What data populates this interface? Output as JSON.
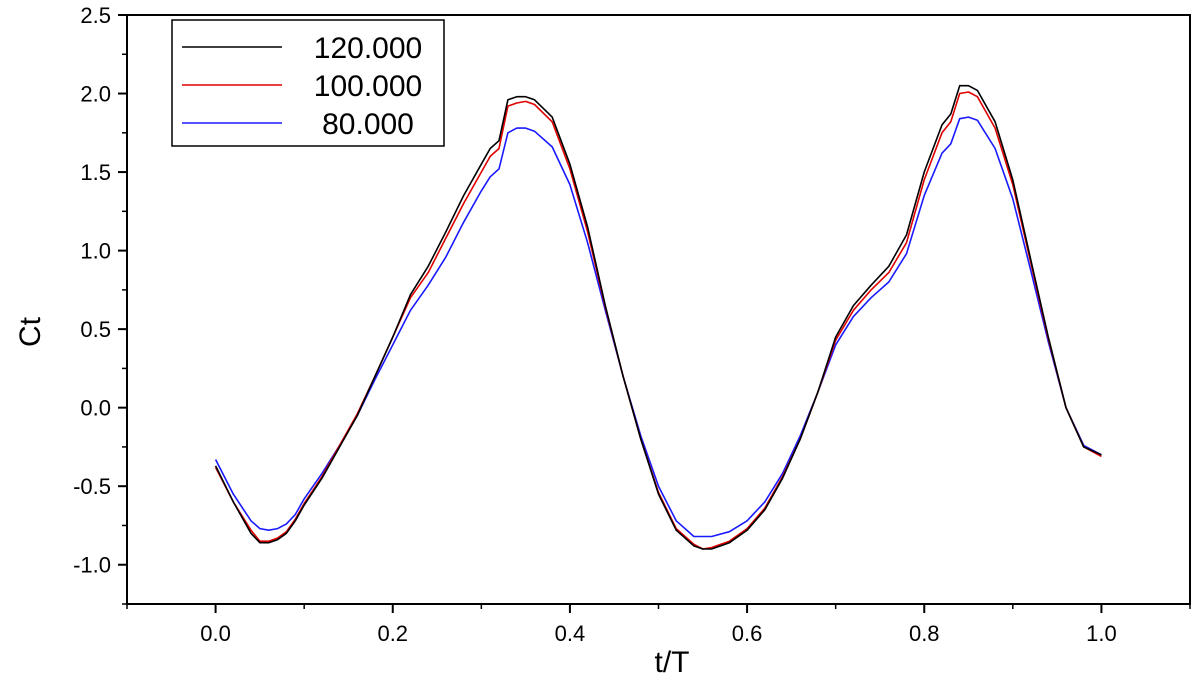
{
  "chart_data": {
    "type": "line",
    "xlabel": "t/T",
    "ylabel": "Ct",
    "xlim": [
      -0.1,
      1.1
    ],
    "ylim": [
      -1.25,
      2.5
    ],
    "xticks": [
      "0.0",
      "0.2",
      "0.4",
      "0.6",
      "0.8",
      "1.0"
    ],
    "yticks": [
      "-1.0",
      "-0.5",
      "0.0",
      "0.5",
      "1.0",
      "1.5",
      "2.0",
      "2.5"
    ],
    "grid": false,
    "legend_position": "top-left",
    "series": [
      {
        "name": "120.000",
        "color": "#000000",
        "x": [
          0.0,
          0.02,
          0.04,
          0.05,
          0.06,
          0.07,
          0.08,
          0.09,
          0.1,
          0.12,
          0.14,
          0.16,
          0.18,
          0.2,
          0.22,
          0.24,
          0.26,
          0.28,
          0.3,
          0.31,
          0.32,
          0.33,
          0.34,
          0.35,
          0.36,
          0.38,
          0.4,
          0.42,
          0.44,
          0.46,
          0.48,
          0.5,
          0.52,
          0.54,
          0.55,
          0.56,
          0.58,
          0.6,
          0.62,
          0.64,
          0.66,
          0.68,
          0.7,
          0.72,
          0.74,
          0.76,
          0.78,
          0.8,
          0.82,
          0.83,
          0.84,
          0.85,
          0.86,
          0.88,
          0.9,
          0.92,
          0.94,
          0.96,
          0.98,
          1.0
        ],
        "y": [
          -0.37,
          -0.6,
          -0.8,
          -0.86,
          -0.86,
          -0.84,
          -0.8,
          -0.72,
          -0.62,
          -0.45,
          -0.25,
          -0.05,
          0.2,
          0.45,
          0.72,
          0.9,
          1.12,
          1.35,
          1.55,
          1.65,
          1.7,
          1.96,
          1.98,
          1.98,
          1.96,
          1.85,
          1.55,
          1.15,
          0.65,
          0.2,
          -0.2,
          -0.55,
          -0.78,
          -0.88,
          -0.9,
          -0.9,
          -0.86,
          -0.78,
          -0.65,
          -0.45,
          -0.2,
          0.1,
          0.45,
          0.65,
          0.78,
          0.9,
          1.1,
          1.5,
          1.8,
          1.87,
          2.05,
          2.05,
          2.02,
          1.82,
          1.45,
          0.95,
          0.45,
          0.0,
          -0.25,
          -0.3
        ]
      },
      {
        "name": "100.000",
        "color": "#e00000",
        "x": [
          0.0,
          0.02,
          0.04,
          0.05,
          0.06,
          0.07,
          0.08,
          0.09,
          0.1,
          0.12,
          0.14,
          0.16,
          0.18,
          0.2,
          0.22,
          0.24,
          0.26,
          0.28,
          0.3,
          0.31,
          0.32,
          0.33,
          0.34,
          0.35,
          0.36,
          0.38,
          0.4,
          0.42,
          0.44,
          0.46,
          0.48,
          0.5,
          0.52,
          0.54,
          0.55,
          0.56,
          0.58,
          0.6,
          0.62,
          0.64,
          0.66,
          0.68,
          0.7,
          0.72,
          0.74,
          0.76,
          0.78,
          0.8,
          0.82,
          0.83,
          0.84,
          0.85,
          0.86,
          0.88,
          0.9,
          0.92,
          0.94,
          0.96,
          0.98,
          1.0
        ],
        "y": [
          -0.38,
          -0.6,
          -0.78,
          -0.85,
          -0.85,
          -0.83,
          -0.79,
          -0.71,
          -0.61,
          -0.44,
          -0.24,
          -0.04,
          0.2,
          0.45,
          0.7,
          0.86,
          1.08,
          1.3,
          1.5,
          1.6,
          1.65,
          1.92,
          1.94,
          1.95,
          1.93,
          1.82,
          1.52,
          1.12,
          0.64,
          0.2,
          -0.2,
          -0.54,
          -0.77,
          -0.87,
          -0.9,
          -0.89,
          -0.85,
          -0.77,
          -0.64,
          -0.44,
          -0.2,
          0.1,
          0.43,
          0.62,
          0.75,
          0.86,
          1.05,
          1.45,
          1.75,
          1.82,
          2.0,
          2.01,
          1.98,
          1.78,
          1.42,
          0.93,
          0.44,
          0.0,
          -0.25,
          -0.31
        ]
      },
      {
        "name": "80.000",
        "color": "#1a1aff",
        "x": [
          0.0,
          0.02,
          0.04,
          0.05,
          0.06,
          0.07,
          0.08,
          0.09,
          0.1,
          0.12,
          0.14,
          0.16,
          0.18,
          0.2,
          0.22,
          0.24,
          0.26,
          0.28,
          0.3,
          0.31,
          0.32,
          0.33,
          0.34,
          0.35,
          0.36,
          0.38,
          0.4,
          0.42,
          0.44,
          0.46,
          0.48,
          0.5,
          0.52,
          0.54,
          0.55,
          0.56,
          0.58,
          0.6,
          0.62,
          0.64,
          0.66,
          0.68,
          0.7,
          0.72,
          0.74,
          0.76,
          0.78,
          0.8,
          0.82,
          0.83,
          0.84,
          0.85,
          0.86,
          0.88,
          0.9,
          0.92,
          0.94,
          0.96,
          0.98,
          1.0
        ],
        "y": [
          -0.33,
          -0.55,
          -0.72,
          -0.77,
          -0.78,
          -0.77,
          -0.74,
          -0.68,
          -0.58,
          -0.42,
          -0.24,
          -0.05,
          0.18,
          0.4,
          0.62,
          0.78,
          0.96,
          1.18,
          1.38,
          1.47,
          1.52,
          1.75,
          1.78,
          1.78,
          1.76,
          1.66,
          1.42,
          1.05,
          0.62,
          0.2,
          -0.18,
          -0.5,
          -0.72,
          -0.82,
          -0.82,
          -0.82,
          -0.79,
          -0.72,
          -0.6,
          -0.42,
          -0.18,
          0.1,
          0.4,
          0.58,
          0.7,
          0.8,
          0.98,
          1.35,
          1.62,
          1.68,
          1.84,
          1.85,
          1.83,
          1.65,
          1.33,
          0.88,
          0.42,
          0.0,
          -0.24,
          -0.3
        ]
      }
    ]
  }
}
